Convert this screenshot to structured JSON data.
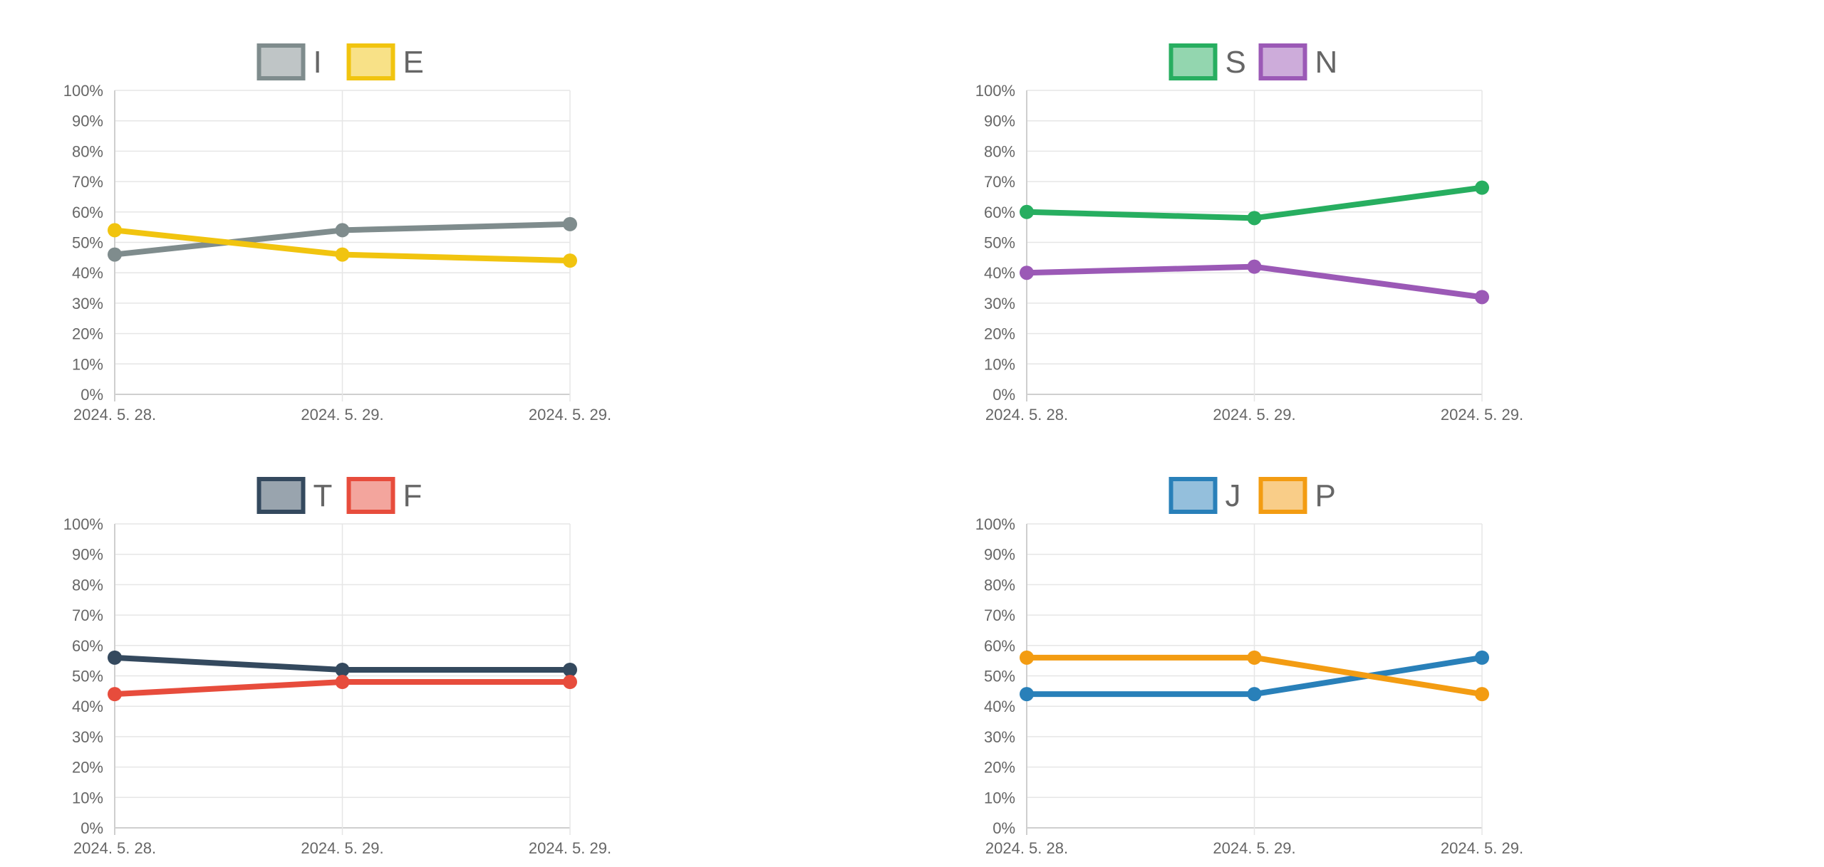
{
  "chart_data": [
    {
      "type": "line",
      "categories": [
        "2024. 5. 28.",
        "2024. 5. 29.",
        "2024. 5. 29."
      ],
      "ylim": [
        0,
        100
      ],
      "yticks": [
        "0%",
        "10%",
        "20%",
        "30%",
        "40%",
        "50%",
        "60%",
        "70%",
        "80%",
        "90%",
        "100%"
      ],
      "grid": true,
      "legend_position": "top",
      "series": [
        {
          "name": "I",
          "values": [
            46,
            54,
            56
          ],
          "color": "#7f8c8d"
        },
        {
          "name": "E",
          "values": [
            54,
            46,
            44
          ],
          "color": "#f1c40f"
        }
      ]
    },
    {
      "type": "line",
      "categories": [
        "2024. 5. 28.",
        "2024. 5. 29.",
        "2024. 5. 29."
      ],
      "ylim": [
        0,
        100
      ],
      "yticks": [
        "0%",
        "10%",
        "20%",
        "30%",
        "40%",
        "50%",
        "60%",
        "70%",
        "80%",
        "90%",
        "100%"
      ],
      "grid": true,
      "legend_position": "top",
      "series": [
        {
          "name": "S",
          "values": [
            60,
            58,
            68
          ],
          "color": "#27ae60"
        },
        {
          "name": "N",
          "values": [
            40,
            42,
            32
          ],
          "color": "#9b59b6"
        }
      ]
    },
    {
      "type": "line",
      "categories": [
        "2024. 5. 28.",
        "2024. 5. 29.",
        "2024. 5. 29."
      ],
      "ylim": [
        0,
        100
      ],
      "yticks": [
        "0%",
        "10%",
        "20%",
        "30%",
        "40%",
        "50%",
        "60%",
        "70%",
        "80%",
        "90%",
        "100%"
      ],
      "grid": true,
      "legend_position": "top",
      "series": [
        {
          "name": "T",
          "values": [
            56,
            52,
            52
          ],
          "color": "#34495e"
        },
        {
          "name": "F",
          "values": [
            44,
            48,
            48
          ],
          "color": "#e74c3c"
        }
      ]
    },
    {
      "type": "line",
      "categories": [
        "2024. 5. 28.",
        "2024. 5. 29.",
        "2024. 5. 29."
      ],
      "ylim": [
        0,
        100
      ],
      "yticks": [
        "0%",
        "10%",
        "20%",
        "30%",
        "40%",
        "50%",
        "60%",
        "70%",
        "80%",
        "90%",
        "100%"
      ],
      "grid": true,
      "legend_position": "top",
      "series": [
        {
          "name": "J",
          "values": [
            44,
            44,
            56
          ],
          "color": "#2980b9"
        },
        {
          "name": "P",
          "values": [
            56,
            56,
            44
          ],
          "color": "#f39c12"
        }
      ]
    }
  ]
}
